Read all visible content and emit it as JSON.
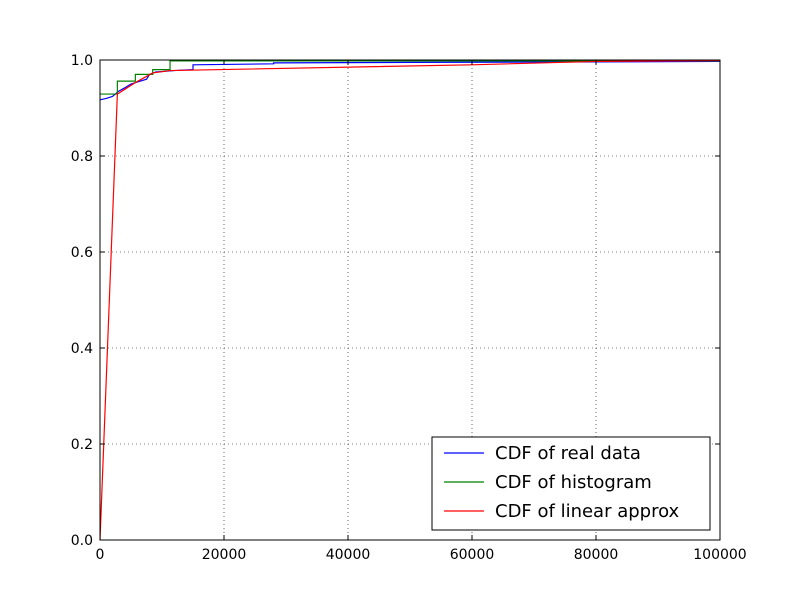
{
  "chart_data": {
    "type": "line",
    "title": "",
    "xlabel": "",
    "ylabel": "",
    "xlim": [
      0,
      100000
    ],
    "ylim": [
      0.0,
      1.0
    ],
    "xticks": [
      0,
      20000,
      40000,
      60000,
      80000,
      100000
    ],
    "xtick_labels": [
      "0",
      "20000",
      "40000",
      "60000",
      "80000",
      "100000"
    ],
    "yticks": [
      0.0,
      0.2,
      0.4,
      0.6,
      0.8,
      1.0
    ],
    "ytick_labels": [
      "0.0",
      "0.2",
      "0.4",
      "0.6",
      "0.8",
      "1.0"
    ],
    "grid": true,
    "legend_position": "lower-right",
    "series": [
      {
        "name": "CDF of real data",
        "color": "#0000ff",
        "step": false,
        "points": [
          [
            0,
            0.917
          ],
          [
            1000,
            0.92
          ],
          [
            2000,
            0.924
          ],
          [
            3000,
            0.935
          ],
          [
            4000,
            0.942
          ],
          [
            5000,
            0.95
          ],
          [
            6000,
            0.954
          ],
          [
            7500,
            0.96
          ],
          [
            8000,
            0.97
          ],
          [
            9000,
            0.975
          ],
          [
            12000,
            0.978
          ],
          [
            15000,
            0.98
          ],
          [
            15000,
            0.99
          ],
          [
            28000,
            0.992
          ],
          [
            28000,
            0.994
          ],
          [
            50000,
            0.995
          ],
          [
            80000,
            0.996
          ],
          [
            100000,
            0.997
          ]
        ]
      },
      {
        "name": "CDF of histogram",
        "color": "#008000",
        "step": true,
        "points": [
          [
            0,
            0.929
          ],
          [
            2800,
            0.929
          ],
          [
            2800,
            0.956
          ],
          [
            5700,
            0.956
          ],
          [
            5700,
            0.97
          ],
          [
            8500,
            0.97
          ],
          [
            8500,
            0.98
          ],
          [
            11300,
            0.98
          ],
          [
            11300,
            0.998
          ],
          [
            100000,
            0.998
          ]
        ]
      },
      {
        "name": "CDF of linear approx",
        "color": "#ff0000",
        "step": false,
        "points": [
          [
            0,
            0.0
          ],
          [
            2800,
            0.929
          ],
          [
            5700,
            0.953
          ],
          [
            8500,
            0.973
          ],
          [
            11300,
            0.978
          ],
          [
            60000,
            0.99
          ],
          [
            80000,
            0.997
          ],
          [
            100000,
            0.999
          ]
        ]
      }
    ]
  }
}
